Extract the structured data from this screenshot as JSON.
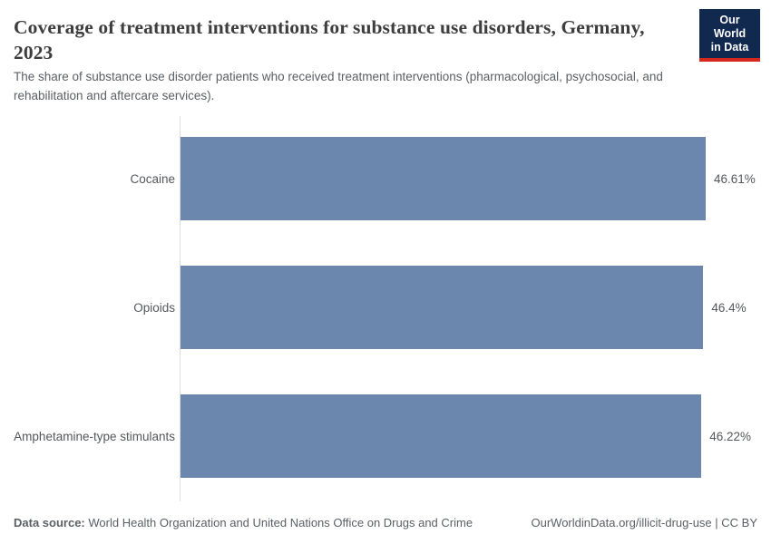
{
  "header": {
    "title": "Coverage of treatment interventions for substance use disorders, Germany, 2023",
    "subtitle": "The share of substance use disorder patients who received treatment interventions (pharmacological, psychosocial, and rehabilitation and aftercare services).",
    "logo": {
      "line1": "Our World",
      "line2": "in Data"
    }
  },
  "chart_data": {
    "type": "bar",
    "orientation": "horizontal",
    "categories": [
      "Cocaine",
      "Opioids",
      "Amphetamine-type stimulants"
    ],
    "values": [
      46.61,
      46.4,
      46.22
    ],
    "value_labels": [
      "46.61%",
      "46.4%",
      "46.22%"
    ],
    "unit": "%",
    "xlim": [
      0,
      46.61
    ],
    "grid": false,
    "legend": false,
    "bar_color": "#6c87ad"
  },
  "footer": {
    "data_source_label": "Data source:",
    "data_source_text": "World Health Organization and United Nations Office on Drugs and Crime",
    "link_text": "OurWorldinData.org/illicit-drug-use | CC BY"
  },
  "colors": {
    "bar": "#6c87ad",
    "logo_background": "#12294f",
    "logo_accent_red": "#d7281d",
    "axis_line": "#dcdfe2",
    "title_text": "#3d3d3d",
    "body_text": "#5b6065"
  }
}
